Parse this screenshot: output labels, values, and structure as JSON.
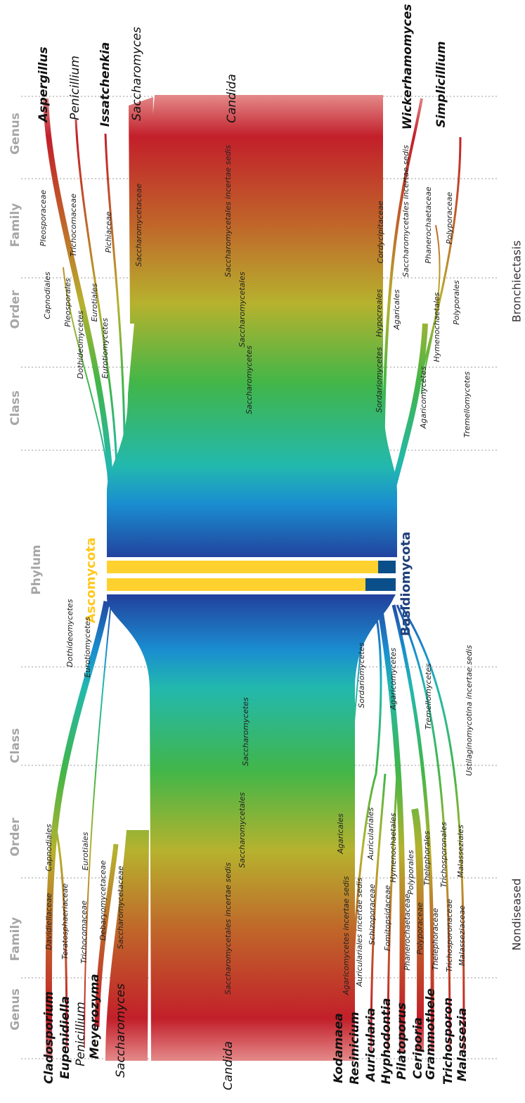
{
  "ranks": [
    "Genus",
    "Family",
    "Order",
    "Class",
    "Phylum"
  ],
  "phyla": [
    "Ascomycota",
    "Basidiomycota"
  ],
  "groups": [
    {
      "name": "Bronchiectasis",
      "genus": [
        {
          "text": "Aspergillus",
          "bold": true
        },
        {
          "text": "Penicillium",
          "bold": false
        },
        {
          "text": "Issatchenkia",
          "bold": true
        },
        {
          "text": "Saccharomyces",
          "bold": false
        },
        {
          "text": "Candida",
          "bold": false
        },
        {
          "text": "Wickerhamomyces",
          "bold": true
        },
        {
          "text": "Simplicillium",
          "bold": true
        }
      ],
      "family": [
        "Pleosporaceae",
        "Trichocomaceae",
        "Pichiaceae",
        "Saccharomycetaceae",
        "Saccharomycetales incertae sedis",
        "Cordycipitaceae",
        "Saccharomycetales incertae sedis",
        "Phanerochaetaceae",
        "Polyporaceae"
      ],
      "order": [
        "Capnodiales",
        "Pleosporales",
        "Eurotiales",
        "Saccharomycetales",
        "Hypocreales",
        "Agaricales",
        "Hymenochaetales",
        "Polyporales"
      ],
      "class": [
        "Dothideomycetes",
        "Eurotiomycetes",
        "Saccharomycetes",
        "Sordariomycetes",
        "Agaricomycetes",
        "Tremellomycetes"
      ]
    },
    {
      "name": "Nondiseased",
      "genus": [
        {
          "text": "Cladosporium",
          "bold": true
        },
        {
          "text": "Eupenidiella",
          "bold": true
        },
        {
          "text": "Penicillium",
          "bold": false
        },
        {
          "text": "Meyerozyma",
          "bold": true
        },
        {
          "text": "Saccharomyces",
          "bold": false
        },
        {
          "text": "Candida",
          "bold": false
        },
        {
          "text": "Kodamaea",
          "bold": true
        },
        {
          "text": "Resinicium",
          "bold": true
        },
        {
          "text": "Auricularia",
          "bold": true
        },
        {
          "text": "Hyphodontia",
          "bold": true
        },
        {
          "text": "Pilatoporus",
          "bold": true
        },
        {
          "text": "Ceriporia",
          "bold": true
        },
        {
          "text": "Grammothele",
          "bold": true
        },
        {
          "text": "Trichosporon",
          "bold": true
        },
        {
          "text": "Malassezia",
          "bold": true
        }
      ],
      "family": [
        "Davidiellaceae",
        "Teratosphaeriaceae",
        "Trichocomaceae",
        "Debaryomycetaceae",
        "Saccharomycetaceae",
        "Saccharomycetales incertae sedis",
        "Agaricomycetes incertae sedis",
        "Auriculariales incertae sedis",
        "Schizoporaceae",
        "Fomitopsidaceae",
        "Phanerochaetaceae",
        "Polyporaceae",
        "Thelephoraceae",
        "Trichosporonaceae",
        "Malasseziaceae"
      ],
      "order": [
        "Capnodiales",
        "Eurotiales",
        "Saccharomycetales",
        "Agaricales",
        "Auriculariales",
        "Hymenochaetales",
        "Polyporales",
        "Thelephorales",
        "Trichosporonales",
        "Malasseziales"
      ],
      "class": [
        "Dothideomycetes",
        "Eurotiomycetes",
        "Saccharomycetes",
        "Sordariomycetes",
        "Agaricomycetes",
        "Tremellomycetes",
        "Ustilaginomycotina incertae sedis"
      ]
    }
  ]
}
